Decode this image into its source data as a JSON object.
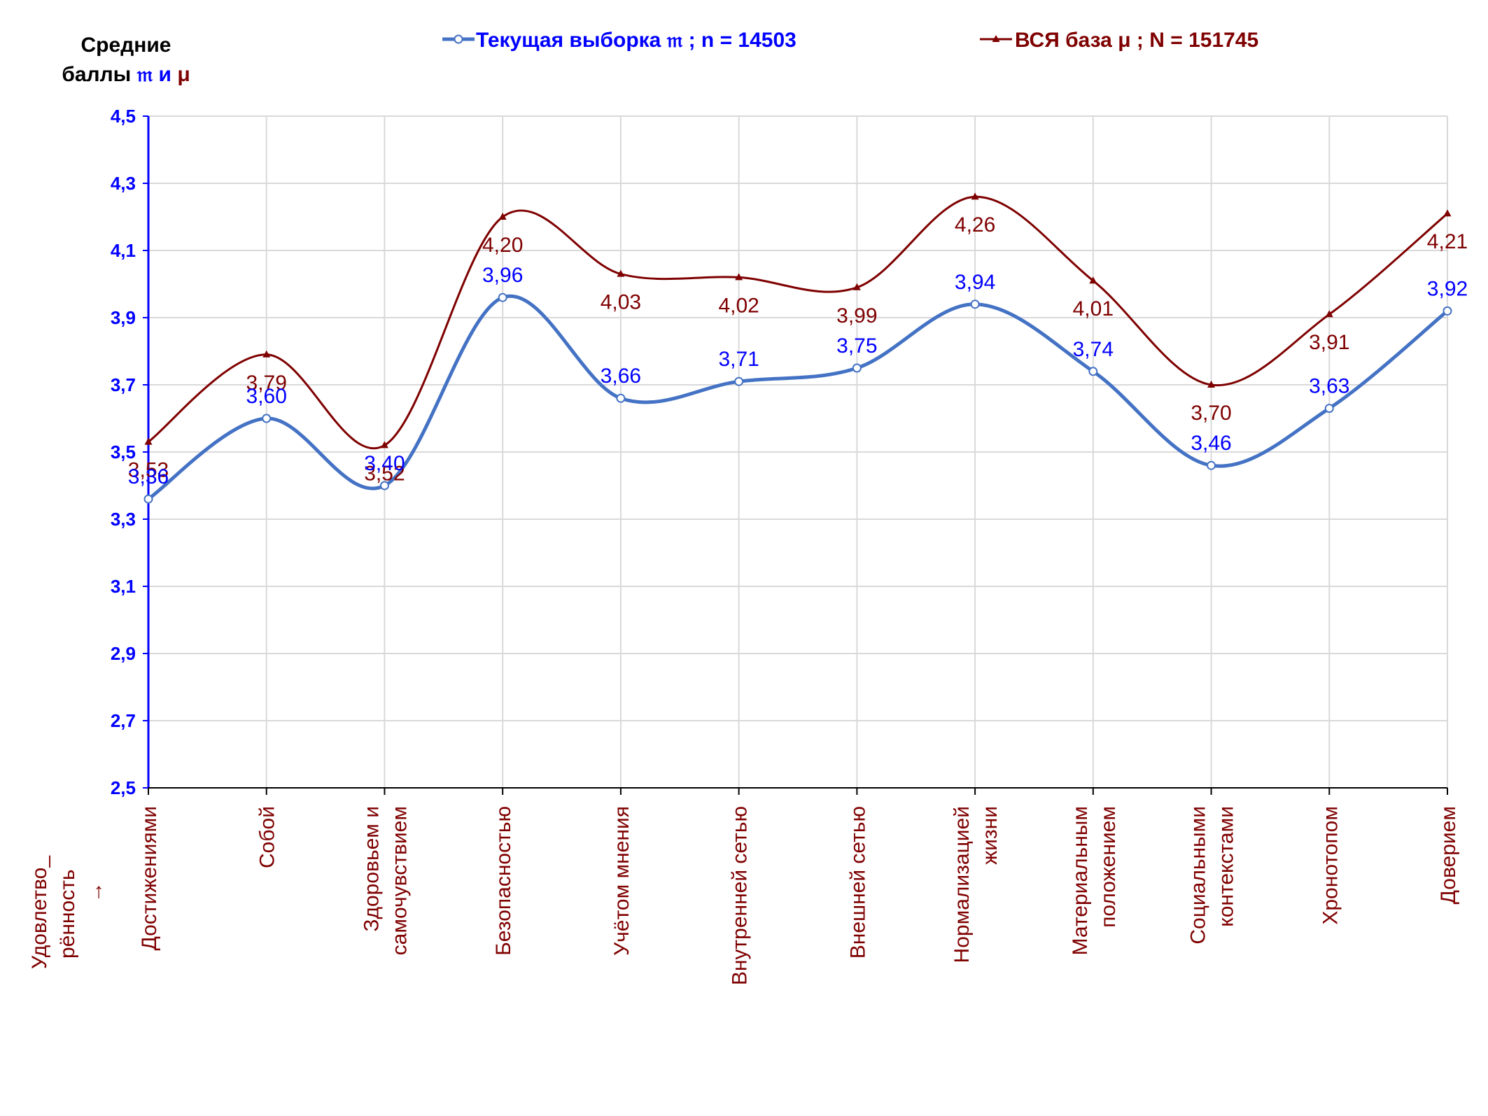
{
  "y_title": {
    "line1": "Средние",
    "line2_prefix": "баллы",
    "sym_current": "𝔪",
    "conj": "и",
    "sym_base": "μ"
  },
  "legend": {
    "current": "Текущая выборка 𝔪 ; n = 14503",
    "base": "ВСЯ база μ ; N = 151745"
  },
  "x_corner_label": {
    "line1": "Удовлетво_",
    "line2": "рённость",
    "arrow": "→"
  },
  "colors": {
    "current": "#4472c4",
    "current_label": "#0000ff",
    "base": "#7f0000",
    "axis": "#0000ff",
    "grid": "#d9d9d9"
  },
  "chart_data": {
    "type": "line",
    "categories": [
      [
        "Достижениями"
      ],
      [
        "Собой"
      ],
      [
        "Здоровьем и",
        "самочувствием"
      ],
      [
        "Безопасностью"
      ],
      [
        "Учётом мнения"
      ],
      [
        "Внутренней сетью"
      ],
      [
        "Внешней сетью"
      ],
      [
        "Нормализацией",
        "жизни"
      ],
      [
        "Материальным",
        "положением"
      ],
      [
        "Социальными",
        "контекстами"
      ],
      [
        "Хронотопом"
      ],
      [
        "Доверием"
      ]
    ],
    "series": [
      {
        "name": "Текущая выборка 𝔪 ; n = 14503",
        "values": [
          3.36,
          3.6,
          3.4,
          3.96,
          3.66,
          3.71,
          3.75,
          3.94,
          3.74,
          3.46,
          3.63,
          3.92
        ],
        "labels": [
          "3,36",
          "3,60",
          "3,40",
          "3,96",
          "3,66",
          "3,71",
          "3,75",
          "3,94",
          "3,74",
          "3,46",
          "3,63",
          "3,92"
        ]
      },
      {
        "name": "ВСЯ база μ ; N = 151745",
        "values": [
          3.53,
          3.79,
          3.52,
          4.2,
          4.03,
          4.02,
          3.99,
          4.26,
          4.01,
          3.7,
          3.91,
          4.21
        ],
        "labels": [
          "3,53",
          "3,79",
          "3,52",
          "4,20",
          "4,03",
          "4,02",
          "3,99",
          "4,26",
          "4,01",
          "3,70",
          "3,91",
          "4,21"
        ]
      }
    ],
    "ylim": [
      2.5,
      4.5
    ],
    "yticks": [
      "2,5",
      "2,7",
      "2,9",
      "3,1",
      "3,3",
      "3,5",
      "3,7",
      "3,9",
      "4,1",
      "4,3",
      "4,5"
    ],
    "grid": true,
    "legend_position": "top",
    "smooth": true
  }
}
